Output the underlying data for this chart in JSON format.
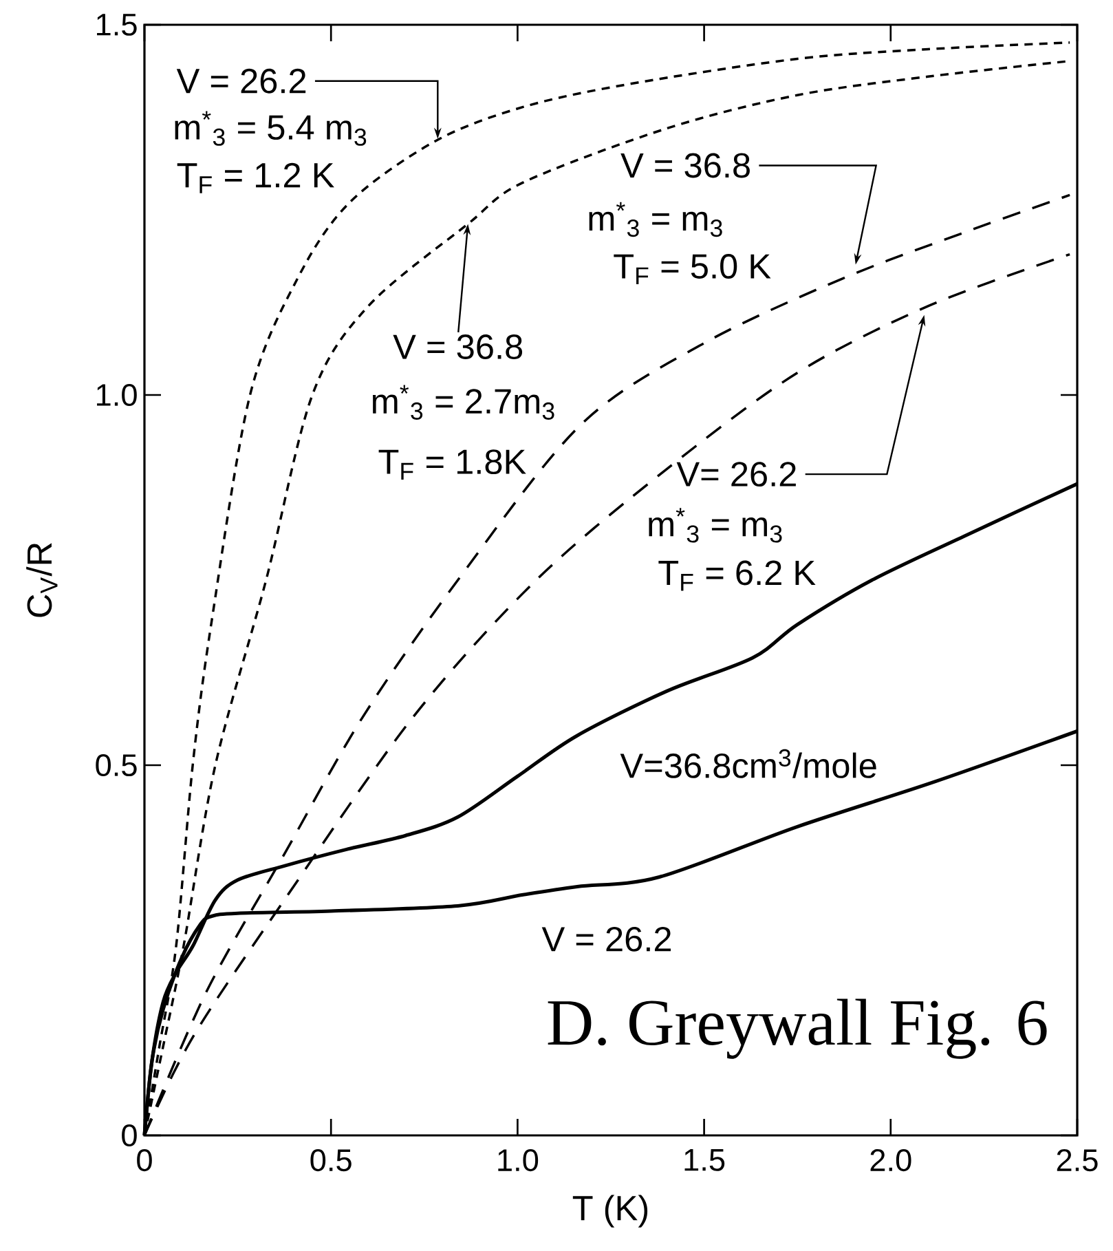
{
  "chart_data": {
    "type": "line",
    "xlabel": "T (K)",
    "ylabel": "C$_{V}$/R",
    "xlim": [
      0,
      2.5
    ],
    "ylim": [
      0,
      1.5
    ],
    "xticks": [
      0,
      0.5,
      {
        "value": 1,
        "label": "1.0"
      },
      1.5,
      {
        "value": 2,
        "label": "2.0"
      },
      2.5
    ],
    "yticks": [
      0,
      0.5,
      {
        "value": 1,
        "label": "1.0"
      },
      1.5
    ],
    "series": [
      {
        "color": "#000000",
        "line_style": "solid",
        "x": [
          0,
          0.02,
          0.05,
          0.085,
          0.13,
          0.19,
          0.25,
          0.375,
          0.54,
          0.7,
          0.84,
          1.0,
          1.16,
          1.4,
          1.63,
          1.75,
          1.95,
          2.2,
          2.5
        ],
        "values": [
          0,
          0.1,
          0.18,
          0.22,
          0.256,
          0.318,
          0.345,
          0.364,
          0.386,
          0.405,
          0.43,
          0.485,
          0.54,
          0.6,
          0.645,
          0.69,
          0.75,
          0.81,
          0.88
        ]
      },
      {
        "color": "#000000",
        "line_style": "solid",
        "x": [
          0,
          0.02,
          0.05,
          0.1,
          0.15,
          0.18,
          0.25,
          0.5,
          0.84,
          1.015,
          1.16,
          1.38,
          1.75,
          2.12,
          2.5
        ],
        "values": [
          0,
          0.1,
          0.17,
          0.24,
          0.285,
          0.296,
          0.3,
          0.303,
          0.31,
          0.325,
          0.336,
          0.349,
          0.417,
          0.478,
          0.546
        ]
      },
      {
        "color": "#000000",
        "line_style": "dotted",
        "x": [
          0,
          0.04,
          0.085,
          0.13,
          0.18,
          0.283,
          0.41,
          0.55,
          0.78,
          1.015,
          1.3,
          1.75,
          2.1,
          2.48
        ],
        "values": [
          0,
          0.12,
          0.256,
          0.503,
          0.694,
          1.0,
          1.157,
          1.26,
          1.343,
          1.389,
          1.42,
          1.454,
          1.467,
          1.476
        ]
      },
      {
        "color": "#000000",
        "line_style": "dotted",
        "x": [
          0,
          0.05,
          0.105,
          0.19,
          0.326,
          0.45,
          0.6,
          0.867,
          1.015,
          1.4,
          1.75,
          2.1,
          2.48
        ],
        "values": [
          0,
          0.12,
          0.256,
          0.5,
          0.75,
          1.0,
          1.12,
          1.231,
          1.287,
          1.36,
          1.405,
          1.43,
          1.451
        ]
      },
      {
        "color": "#000000",
        "line_style": "dashed",
        "x": [
          0,
          0.166,
          0.375,
          0.585,
          0.84,
          1.17,
          1.5,
          1.87,
          2.2,
          2.48
        ],
        "values": [
          0,
          0.194,
          0.38,
          0.565,
          0.75,
          0.96,
          1.07,
          1.157,
          1.22,
          1.27
        ]
      },
      {
        "color": "#000000",
        "line_style": "dashed",
        "x": [
          0,
          0.13,
          0.375,
          0.72,
          1.05,
          1.4,
          1.75,
          2.1,
          2.48
        ],
        "values": [
          0,
          0.133,
          0.318,
          0.565,
          0.75,
          0.9,
          1.03,
          1.12,
          1.19
        ]
      }
    ],
    "annotations": [
      {
        "text": "V = 26.2",
        "x": 0.786,
        "y": 1.346
      },
      "m$^{*}$$_{3}$ = 5.4 m$_{3}$",
      "T$_{F}$ = 1.2 K",
      {
        "text": "V = 36.8",
        "x": 0.867,
        "y": 1.231
      },
      "m$^{*}$$_{3}$ = 2.7m$_{3}$",
      "T$_{F}$ = 1.8K",
      {
        "text": "V = 36.8",
        "x": 1.906,
        "y": 1.176
      },
      "m$^{*}$$_{3}$ = m$_{3}$",
      "T$_{F}$ = 5.0 K",
      {
        "text": "V= 26.2",
        "x": 2.09,
        "y": 1.108
      },
      "m$^{*}$$_{3}$ = m$_{3}$",
      "T$_{F}$ = 6.2 K",
      "V=36.8cm$^{3}$/mole",
      "V = 26.2",
      "D. Greywall Fig. 6"
    ]
  }
}
